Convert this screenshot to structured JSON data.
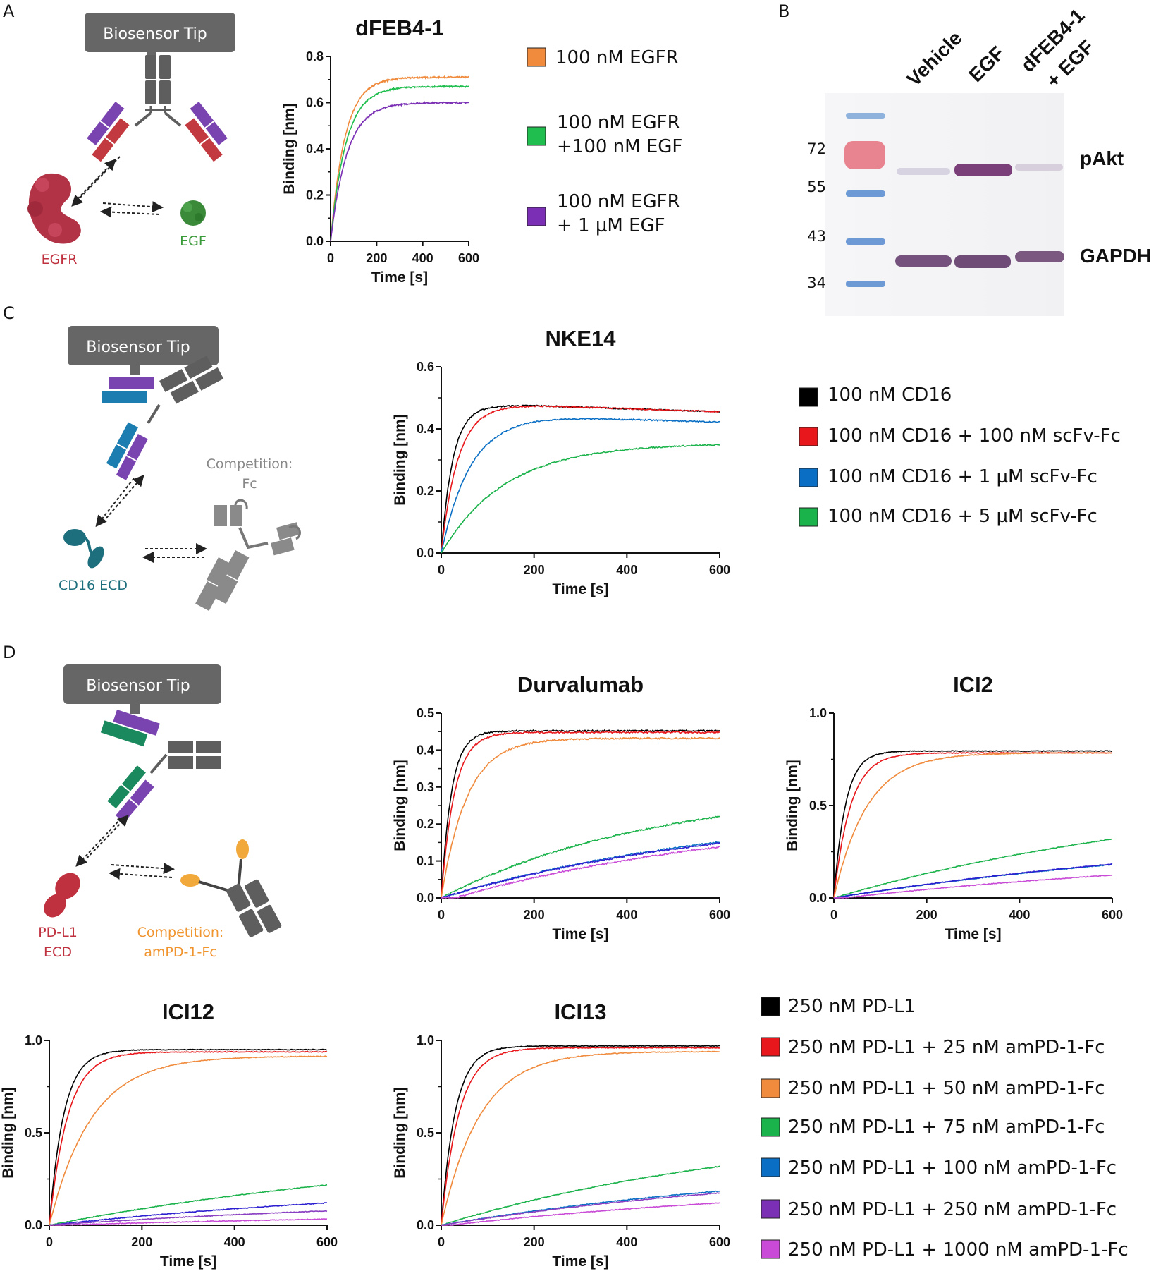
{
  "panels": {
    "a": "A",
    "b": "B",
    "c": "C",
    "d": "D"
  },
  "diagrams": {
    "tip_label": "Biosensor Tip",
    "a": {
      "target": "EGFR",
      "ligand": "EGF"
    },
    "c": {
      "target": "CD16 ECD",
      "competitor_line1": "Competition:",
      "competitor_line2": "Fc"
    },
    "d": {
      "target_line1": "PD-L1",
      "target_line2": "ECD",
      "competitor_line1": "Competition:",
      "competitor_line2": "amPD-1-Fc"
    }
  },
  "colors": {
    "orange": "#f08a3c",
    "green": "#1fbe4f",
    "purple": "#7a2fb4",
    "black": "#000000",
    "red": "#e8171b",
    "blue": "#0a6fc4",
    "green2": "#1ab24a",
    "blue2": "#2b1fd0",
    "violet": "#8a3fc2",
    "magenta": "#c84ad6",
    "egfr": "#b23246",
    "egf": "#3b8a3a",
    "cd16": "#1d6f7e",
    "pdl1": "#c0313f",
    "pd1": "#f2a93b",
    "grey": "#666666"
  },
  "blot": {
    "lanes": [
      "Vehicle",
      "EGF",
      "dFEB4-1",
      "+ EGF"
    ],
    "markers": [
      "72",
      "55",
      "43",
      "34"
    ],
    "bands": [
      "pAkt",
      "GAPDH"
    ]
  },
  "chart_data": [
    {
      "id": "a",
      "type": "line",
      "title": "dFEB4-1",
      "xlabel": "Time [s]",
      "ylabel": "Binding [nm]",
      "xlim": [
        0,
        600
      ],
      "ylim": [
        0,
        0.8
      ],
      "xticks": [
        "0",
        "200",
        "400",
        "600"
      ],
      "yticks": [
        "0.0",
        "0.2",
        "0.4",
        "0.6",
        "0.8"
      ],
      "series": [
        {
          "name": "100 nM EGFR",
          "color": "#f08a3c",
          "plateau": 0.71,
          "k": 0.016,
          "noise": 0.003
        },
        {
          "name": "100 nM EGFR",
          "name2": "+100 nM EGF",
          "color": "#1fbe4f",
          "plateau": 0.67,
          "k": 0.015,
          "noise": 0.003
        },
        {
          "name": "100 nM EGFR",
          "name2": "+ 1 µM EGF",
          "color": "#7a2fb4",
          "plateau": 0.6,
          "k": 0.014,
          "noise": 0.003
        }
      ]
    },
    {
      "id": "c",
      "type": "line",
      "title": "NKE14",
      "xlabel": "Time [s]",
      "ylabel": "Binding [nm]",
      "xlim": [
        0,
        600
      ],
      "ylim": [
        0,
        0.6
      ],
      "xticks": [
        "0",
        "200",
        "400",
        "600"
      ],
      "yticks": [
        "0.0",
        "0.2",
        "0.4",
        "0.6"
      ],
      "series": [
        {
          "name": "100 nM CD16",
          "color": "#000000",
          "plateau": 0.475,
          "k": 0.04,
          "decay": 0.00019,
          "noise": 0.002
        },
        {
          "name": "100 nM CD16 + 100 nM scFv-Fc",
          "color": "#e8171b",
          "plateau": 0.475,
          "k": 0.028,
          "decay": 0.00019,
          "noise": 0.002
        },
        {
          "name": "100 nM CD16 + 1 µM scFv-Fc",
          "color": "#0a6fc4",
          "plateau": 0.44,
          "k": 0.016,
          "decay": 0.00019,
          "noise": 0.002
        },
        {
          "name": "100 nM CD16 + 5 µM scFv-Fc",
          "color": "#1ab24a",
          "plateau": 0.353,
          "k": 0.0072,
          "decay": 0,
          "noise": 0.002
        }
      ]
    },
    {
      "id": "d1",
      "type": "line",
      "title": "Durvalumab",
      "xlabel": "Time [s]",
      "ylabel": "Binding [nm]",
      "xlim": [
        0,
        600
      ],
      "ylim": [
        0,
        0.5
      ],
      "xticks": [
        "0",
        "200",
        "400",
        "600"
      ],
      "yticks": [
        "0.0",
        "0.1",
        "0.2",
        "0.3",
        "0.4",
        "0.5"
      ],
      "series": [
        {
          "name": "250 nM PD-L1",
          "color": "#000000",
          "plateau": 0.452,
          "k": 0.045,
          "noise": 0.002
        },
        {
          "name": "250 nM PD-L1 + 25 nM amPD-1-Fc",
          "color": "#e8171b",
          "plateau": 0.448,
          "k": 0.035,
          "noise": 0.002
        },
        {
          "name": "250 nM PD-L1 + 50 nM amPD-1-Fc",
          "color": "#f08a3c",
          "plateau": 0.432,
          "k": 0.018,
          "noise": 0.002
        },
        {
          "name": "250 nM PD-L1 + 75 nM amPD-1-Fc",
          "color": "#1ab24a",
          "plateau": 0.3,
          "k": 0.0022,
          "noise": 0.002
        },
        {
          "name": "250 nM PD-L1 + 100 nM amPD-1-Fc",
          "color": "#0a6fc4",
          "plateau": 0.25,
          "k": 0.00155,
          "noise": 0.002
        },
        {
          "name": "250 nM PD-L1 + 250 nM amPD-1-Fc",
          "color": "#2b1fd0",
          "plateau": 0.24,
          "k": 0.0016,
          "noise": 0.002
        },
        {
          "name": "250 nM PD-L1 + 1000 nM amPD-1-Fc",
          "color": "#c84ad6",
          "plateau": 0.23,
          "k": 0.0016,
          "noise": 0.002,
          "lag": 30
        }
      ]
    },
    {
      "id": "d2",
      "type": "line",
      "title": "ICI2",
      "xlabel": "Time [s]",
      "ylabel": "Binding [nm]",
      "xlim": [
        0,
        600
      ],
      "ylim": [
        0,
        1.0
      ],
      "xticks": [
        "0",
        "200",
        "400",
        "600"
      ],
      "yticks": [
        "0.0",
        "0.5",
        "1.0"
      ],
      "series": [
        {
          "name": "250 nM PD-L1",
          "color": "#000000",
          "plateau": 0.795,
          "k": 0.04,
          "noise": 0.002
        },
        {
          "name": "250 nM PD-L1 + 25 nM amPD-1-Fc",
          "color": "#e8171b",
          "plateau": 0.785,
          "k": 0.028,
          "noise": 0.002
        },
        {
          "name": "250 nM PD-L1 + 50 nM amPD-1-Fc",
          "color": "#f08a3c",
          "plateau": 0.785,
          "k": 0.014,
          "noise": 0.002
        },
        {
          "name": "250 nM PD-L1 + 75 nM amPD-1-Fc",
          "color": "#1ab24a",
          "plateau": 0.62,
          "k": 0.0012,
          "noise": 0.002
        },
        {
          "name": "250 nM PD-L1 + 100 nM amPD-1-Fc",
          "color": "#0a6fc4",
          "plateau": 0.4,
          "k": 0.001,
          "noise": 0.002
        },
        {
          "name": "250 nM PD-L1 + 250 nM amPD-1-Fc",
          "color": "#2b1fd0",
          "plateau": 0.4,
          "k": 0.00102,
          "noise": 0.002
        },
        {
          "name": "250 nM PD-L1 + 1000 nM amPD-1-Fc",
          "color": "#c84ad6",
          "plateau": 0.28,
          "k": 0.001,
          "noise": 0.002,
          "lag": 20
        }
      ]
    },
    {
      "id": "d3",
      "type": "line",
      "title": "ICI12",
      "xlabel": "Time [s]",
      "ylabel": "Binding [nm]",
      "xlim": [
        0,
        600
      ],
      "ylim": [
        0,
        1.0
      ],
      "xticks": [
        "0",
        "200",
        "400",
        "600"
      ],
      "yticks": [
        "0.0",
        "0.5",
        "1.0"
      ],
      "series": [
        {
          "name": "250 nM PD-L1",
          "color": "#000000",
          "plateau": 0.95,
          "k": 0.032,
          "noise": 0.002
        },
        {
          "name": "250 nM PD-L1 + 25 nM amPD-1-Fc",
          "color": "#e8171b",
          "plateau": 0.938,
          "k": 0.025,
          "noise": 0.002
        },
        {
          "name": "250 nM PD-L1 + 50 nM amPD-1-Fc",
          "color": "#f08a3c",
          "plateau": 0.915,
          "k": 0.011,
          "noise": 0.002
        },
        {
          "name": "250 nM PD-L1 + 75 nM amPD-1-Fc",
          "color": "#1ab24a",
          "plateau": 0.45,
          "k": 0.0011,
          "noise": 0.002
        },
        {
          "name": "250 nM PD-L1 + 100 nM amPD-1-Fc",
          "color": "#2b1fd0",
          "plateau": 0.25,
          "k": 0.0011,
          "noise": 0.002
        },
        {
          "name": "250 nM PD-L1 + 250 nM amPD-1-Fc",
          "color": "#8a3fc2",
          "plateau": 0.16,
          "k": 0.0011,
          "noise": 0.002
        },
        {
          "name": "250 nM PD-L1 + 1000 nM amPD-1-Fc",
          "color": "#c84ad6",
          "plateau": 0.07,
          "k": 0.0011,
          "noise": 0.002,
          "lag": 20
        }
      ]
    },
    {
      "id": "d4",
      "type": "line",
      "title": "ICI13",
      "xlabel": "Time [s]",
      "ylabel": "Binding [nm]",
      "xlim": [
        0,
        600
      ],
      "ylim": [
        0,
        1.0
      ],
      "xticks": [
        "0",
        "200",
        "400",
        "600"
      ],
      "yticks": [
        "0.0",
        "0.5",
        "1.0"
      ],
      "series": [
        {
          "name": "250 nM PD-L1",
          "color": "#000000",
          "plateau": 0.97,
          "k": 0.033,
          "noise": 0.002
        },
        {
          "name": "250 nM PD-L1 + 25 nM amPD-1-Fc",
          "color": "#e8171b",
          "plateau": 0.96,
          "k": 0.026,
          "noise": 0.002
        },
        {
          "name": "250 nM PD-L1 + 50 nM amPD-1-Fc",
          "color": "#f08a3c",
          "plateau": 0.94,
          "k": 0.012,
          "noise": 0.002
        },
        {
          "name": "250 nM PD-L1 + 75 nM amPD-1-Fc",
          "color": "#1ab24a",
          "plateau": 0.56,
          "k": 0.0014,
          "noise": 0.002
        },
        {
          "name": "250 nM PD-L1 + 100 nM amPD-1-Fc",
          "color": "#0a6fc4",
          "plateau": 0.36,
          "k": 0.0012,
          "noise": 0.002
        },
        {
          "name": "250 nM PD-L1 + 250 nM amPD-1-Fc",
          "color": "#8a3fc2",
          "plateau": 0.34,
          "k": 0.0012,
          "noise": 0.002
        },
        {
          "name": "250 nM PD-L1 + 1000 nM amPD-1-Fc",
          "color": "#c84ad6",
          "plateau": 0.24,
          "k": 0.0012,
          "noise": 0.002,
          "lag": 20
        }
      ]
    }
  ],
  "legend_d": [
    {
      "label": "250 nM PD-L1",
      "color": "#000000"
    },
    {
      "label": "250 nM PD-L1 + 25 nM amPD-1-Fc",
      "color": "#e8171b"
    },
    {
      "label": "250 nM PD-L1 + 50 nM amPD-1-Fc",
      "color": "#f08a3c"
    },
    {
      "label": "250 nM PD-L1 + 75 nM amPD-1-Fc",
      "color": "#1ab24a"
    },
    {
      "label": "250 nM PD-L1 + 100 nM amPD-1-Fc",
      "color": "#0a6fc4"
    },
    {
      "label": "250 nM PD-L1 + 250 nM amPD-1-Fc",
      "color": "#7a2fb4"
    },
    {
      "label": "250 nM PD-L1 + 1000 nM amPD-1-Fc",
      "color": "#c84ad6"
    }
  ]
}
